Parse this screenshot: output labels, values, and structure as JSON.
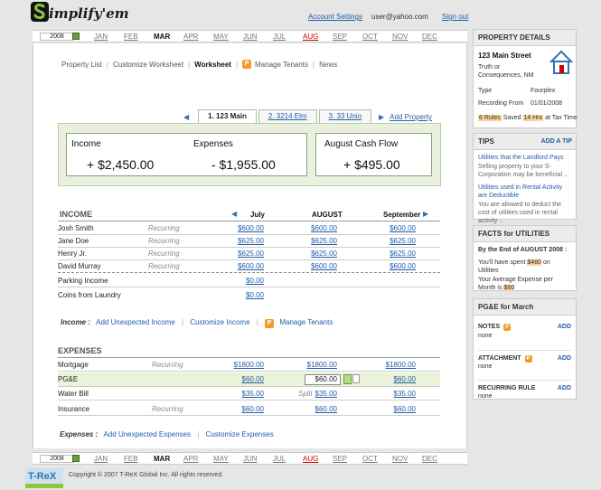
{
  "header": {
    "logo_text": "implify'em",
    "account_settings": "Account Settings",
    "user_email": "user@yahoo.com",
    "signout": "Sign out"
  },
  "monthbar": {
    "year": "2008",
    "months": [
      "JAN",
      "FEB",
      "MAR",
      "APR",
      "MAY",
      "JUN",
      "JUL",
      "AUG",
      "SEP",
      "OCT",
      "NOV",
      "DEC"
    ],
    "current": "MAR",
    "highlight": "AUG"
  },
  "subnav": {
    "items": [
      "Property List",
      "Customize Worksheet",
      "Worksheet",
      "Manage Tenants",
      "News"
    ],
    "active": "Worksheet"
  },
  "tabs": {
    "items": [
      "1. 123 Main",
      "2. 3214 Elm",
      "3. 33 Unio"
    ],
    "add_property": "Add Property"
  },
  "summary": {
    "income_label": "Income",
    "income_value": "+ $2,450.00",
    "expenses_label": "Expenses",
    "expenses_value": "- $1,955.00",
    "cashflow_label": "August Cash Flow",
    "cashflow_value": "+ $495.00"
  },
  "income": {
    "title": "INCOME",
    "col_prev": "July",
    "col_cur": "AUGUST",
    "col_next": "September",
    "rows": [
      {
        "label": "Josh Smith",
        "note": "Recurring",
        "c1": "$600.00",
        "c2": "$600.00",
        "c3": "$600.00"
      },
      {
        "label": "Jane Doe",
        "note": "Recurring",
        "c1": "$625.00",
        "c2": "$625.00",
        "c3": "$625.00"
      },
      {
        "label": "Henry Jr.",
        "note": "Recurring",
        "c1": "$625.00",
        "c2": "$625.00",
        "c3": "$625.00"
      },
      {
        "label": "David Murray",
        "note": "Recurring",
        "c1": "$600.00",
        "c2": "$600.00",
        "c3": "$600.00"
      },
      {
        "label": "Parking Income",
        "note": "",
        "c1": "$0.00",
        "c2": "",
        "c3": ""
      },
      {
        "label": "Coins from Laundry",
        "note": "",
        "c1": "$0.00",
        "c2": "",
        "c3": ""
      }
    ],
    "actions_label": "Income :",
    "add_unexpected": "Add Unexpected Income",
    "customize": "Customize Income",
    "manage_tenants": "Manage Tenants"
  },
  "expenses": {
    "title": "EXPENSES",
    "rows": [
      {
        "label": "Mortgage",
        "note": "Recurring",
        "c1": "$1800.00",
        "c2": "$1800.00",
        "c3": "$1800.00"
      },
      {
        "label": "PG&E",
        "note": "",
        "c1": "$60.00",
        "c2": "$60.00",
        "c3": "$60.00"
      },
      {
        "label": "Water Bill",
        "note": "Split",
        "c1": "$35.00",
        "c2": "$35.00",
        "c3": "$35.00"
      },
      {
        "label": "Insurance",
        "note": "Recurring",
        "c1": "$60.00",
        "c2": "$60.00",
        "c3": "$60.00"
      }
    ],
    "actions_label": "Expenses :",
    "add_unexpected": "Add Unexpected Expenses",
    "customize": "Customize Expenses"
  },
  "sidebar": {
    "property_details": {
      "title": "PROPERTY DETAILS",
      "address1": "123 Main Street",
      "address2": "Truth or Consequences, NM",
      "type_label": "Type",
      "type_value": "Fourplex",
      "recording_label": "Recording From",
      "recording_value": "01/01/2008",
      "rules_badge": "6 Rules",
      "saved_text": "Saved",
      "hours_badge": "14 Hrs",
      "tax_text": "at Tax Time"
    },
    "tips": {
      "title": "TIPS",
      "add": "ADD A TIP",
      "tip1_title": "Utilities that the Landlord Pays",
      "tip1_text": "Selling property to your S-Corporation may be beneficial ...",
      "tip2_title": "Utilities used in Rental Activity are Deductible",
      "tip2_text": "You are allowed to deduct the cost of utilities used in rental activity ..."
    },
    "facts": {
      "title": "FACTS for UTILITIES",
      "line1": "By the End of AUGUST 2008 :",
      "line2_pre": "You'll have spent",
      "line2_badge": "$480",
      "line2_post": "on Utilities",
      "line3_pre": "Your Average Expense per Month is",
      "line3_badge": "$60"
    },
    "pge": {
      "title": "PG&E for March",
      "notes": "NOTES",
      "attachment": "ATTACHMENT",
      "recurring": "RECURRING RULE",
      "add": "ADD",
      "none": "none"
    }
  },
  "footer": {
    "copyright": "Copyright © 2007 T-ReX Global Inc. All rights reserved."
  }
}
